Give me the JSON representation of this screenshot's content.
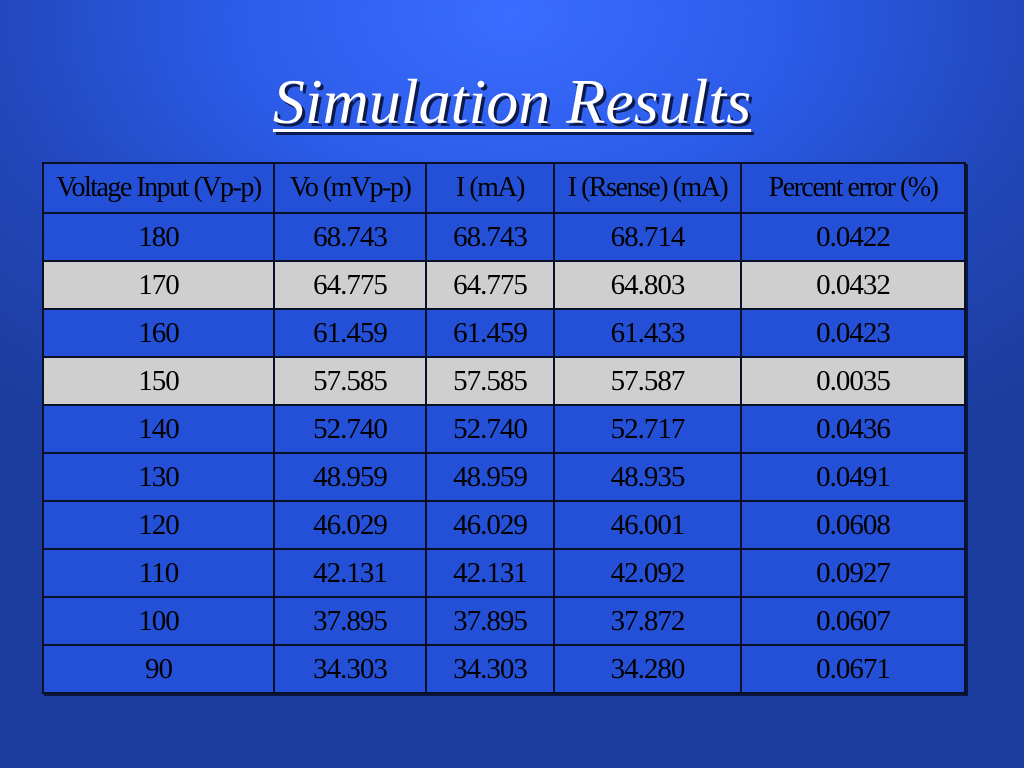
{
  "slide": {
    "title": "Simulation Results"
  },
  "table": {
    "headers": [
      "Voltage Input (Vp-p)",
      "Vo (mVp-p)",
      "I (mA)",
      "I (Rsense) (mA)",
      "Percent error (%)"
    ],
    "rows": [
      [
        "180",
        "68.743",
        "68.743",
        "68.714",
        "0.0422"
      ],
      [
        "170",
        "64.775",
        "64.775",
        "64.803",
        "0.0432"
      ],
      [
        "160",
        "61.459",
        "61.459",
        "61.433",
        "0.0423"
      ],
      [
        "150",
        "57.585",
        "57.585",
        "57.587",
        "0.0035"
      ],
      [
        "140",
        "52.740",
        "52.740",
        "52.717",
        "0.0436"
      ],
      [
        "130",
        "48.959",
        "48.959",
        "48.935",
        "0.0491"
      ],
      [
        "120",
        "46.029",
        "46.029",
        "46.001",
        "0.0608"
      ],
      [
        "110",
        "42.131",
        "42.131",
        "42.092",
        "0.0927"
      ],
      [
        "100",
        "37.895",
        "37.895",
        "37.872",
        "0.0607"
      ],
      [
        "90",
        "34.303",
        "34.303",
        "34.280",
        "0.0671"
      ]
    ],
    "row_colors": [
      "#2450d8",
      "#cfcfcf",
      "#2450d8",
      "#cfcfcf",
      "#2450d8",
      "#2450d8",
      "#2450d8",
      "#2450d8",
      "#2450d8",
      "#2450d8"
    ],
    "header_color": "#2450d8"
  },
  "colors": {
    "background": "#2b5ae6",
    "title_text": "#ffffff",
    "cell_text": "#000000",
    "border": "#0a1026"
  }
}
